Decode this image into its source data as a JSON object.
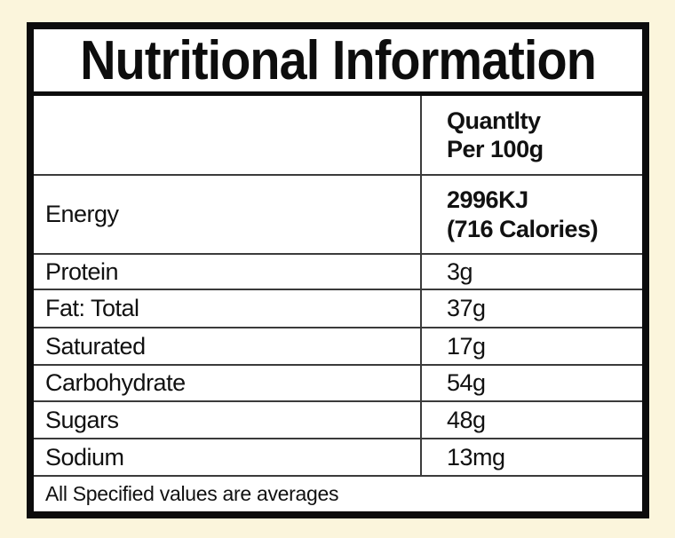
{
  "colors": {
    "page_bg": "#FBF5DC",
    "label_bg": "#FFFFFF",
    "border": "#0C0C0C",
    "grid_line": "#3B3B3B",
    "text": "#111111"
  },
  "title": "Nutritional Information",
  "table": {
    "quantity_header": [
      "Quantlty",
      "Per 100g"
    ],
    "rows": [
      {
        "label": "Energy",
        "value": [
          "2996KJ",
          "(716 Calories)"
        ]
      },
      {
        "label": "Protein",
        "value": "3g"
      },
      {
        "label": "Fat: Total",
        "value": "37g"
      },
      {
        "label": "Saturated",
        "value": "17g"
      },
      {
        "label": "Carbohydrate",
        "value": "54g"
      },
      {
        "label": "Sugars",
        "value": "48g"
      },
      {
        "label": "Sodium",
        "value": "13mg"
      }
    ],
    "footer": "All Specified values are averages"
  }
}
